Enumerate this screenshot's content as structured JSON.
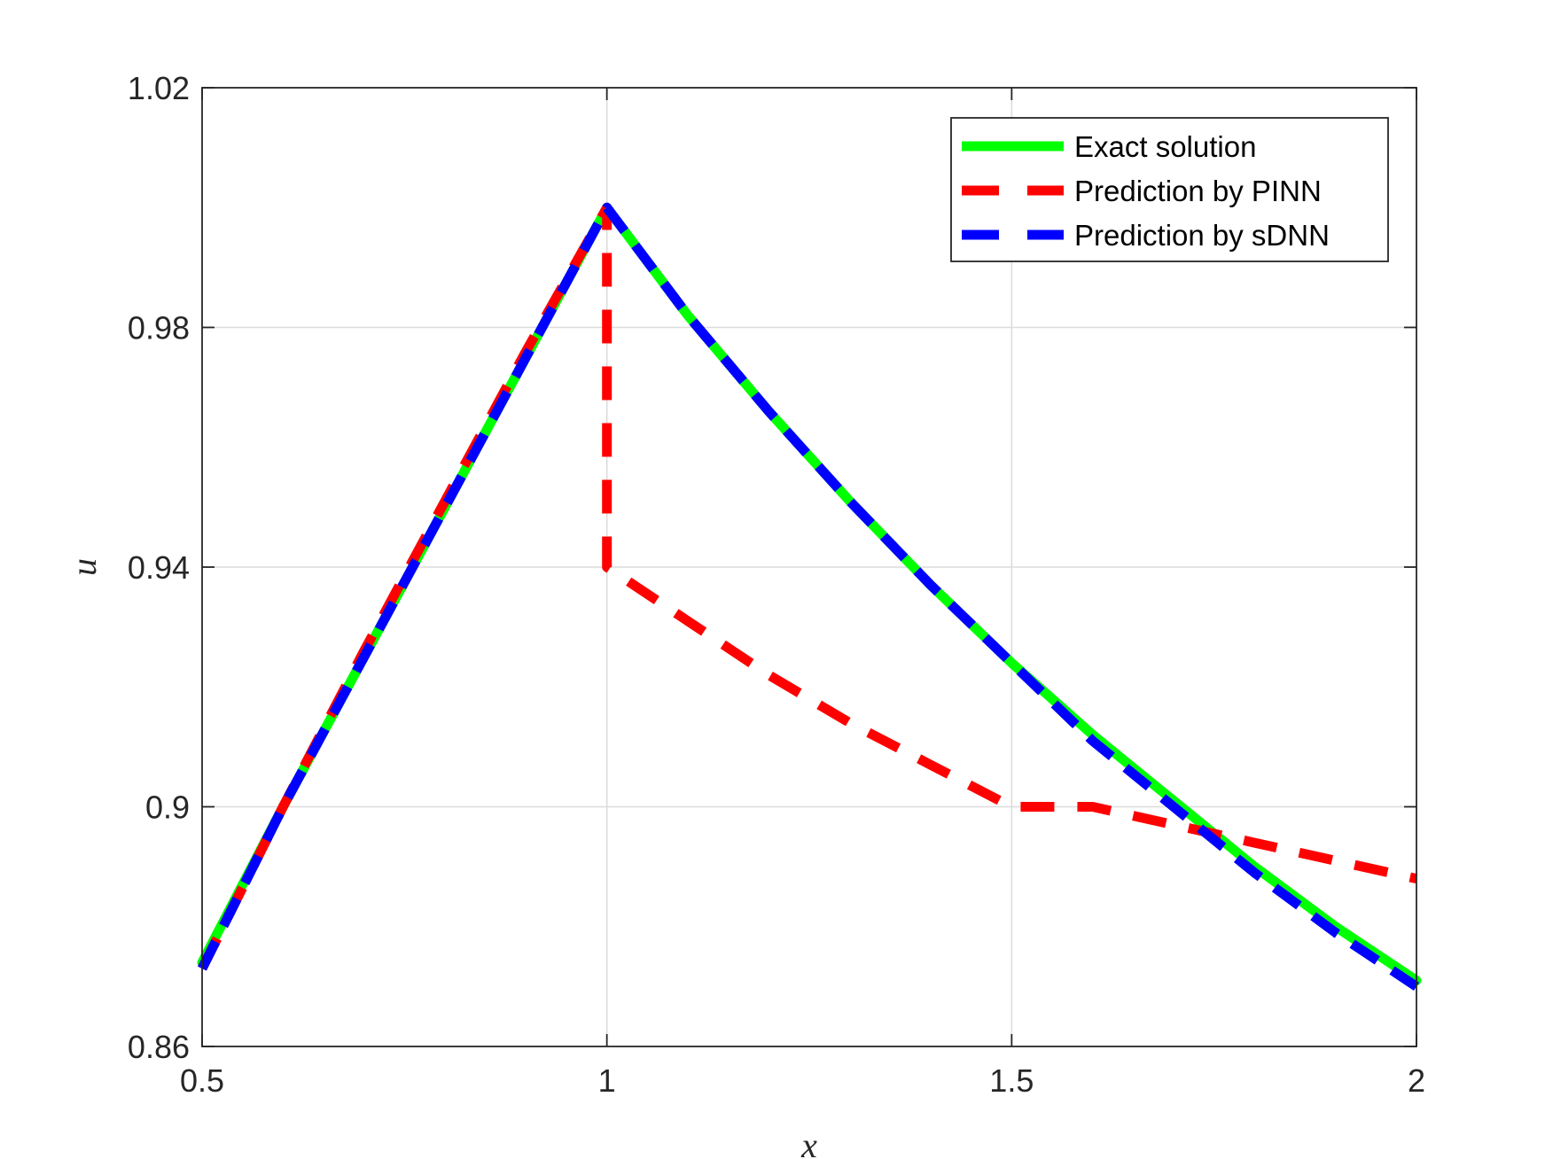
{
  "chart_data": {
    "type": "line",
    "xlabel": "x",
    "ylabel": "u",
    "xlim": [
      0.5,
      2
    ],
    "ylim": [
      0.86,
      1.02
    ],
    "xticks": [
      0.5,
      1,
      1.5,
      2
    ],
    "xtick_labels": [
      "0.5",
      "1",
      "1.5",
      "2"
    ],
    "yticks": [
      0.86,
      0.9,
      0.94,
      0.98,
      1.02
    ],
    "ytick_labels": [
      "0.86",
      "0.9",
      "0.94",
      "0.98",
      "1.02"
    ],
    "grid": true,
    "legend_position": "top-right",
    "series": [
      {
        "name": "Exact solution",
        "color": "#00ff00",
        "style": "solid",
        "x": [
          0.5,
          0.6,
          0.7,
          0.8,
          0.9,
          1.0,
          1.1,
          1.2,
          1.3,
          1.4,
          1.5,
          1.6,
          1.7,
          1.8,
          1.9,
          2.0
        ],
        "y": [
          0.874,
          0.9,
          0.925,
          0.95,
          0.975,
          1.0,
          0.982,
          0.966,
          0.951,
          0.937,
          0.924,
          0.912,
          0.901,
          0.89,
          0.88,
          0.871
        ]
      },
      {
        "name": "Prediction by PINN",
        "color": "#ff0000",
        "style": "dashed",
        "x": [
          0.5,
          0.6,
          0.7,
          0.8,
          0.9,
          1.0,
          1.0,
          1.1,
          1.2,
          1.3,
          1.4,
          1.5,
          1.6,
          1.7,
          1.8,
          1.9,
          2.0
        ],
        "y": [
          0.873,
          0.9,
          0.926,
          0.951,
          0.976,
          1.0,
          0.94,
          0.931,
          0.922,
          0.914,
          0.907,
          0.9,
          0.9,
          0.897,
          0.894,
          0.891,
          0.888
        ]
      },
      {
        "name": "Prediction by sDNN",
        "color": "#0000ff",
        "style": "dashed",
        "x": [
          0.5,
          0.6,
          0.7,
          0.8,
          0.9,
          1.0,
          1.1,
          1.2,
          1.3,
          1.4,
          1.5,
          1.6,
          1.7,
          1.8,
          1.9,
          2.0
        ],
        "y": [
          0.873,
          0.9,
          0.925,
          0.95,
          0.975,
          1.0,
          0.982,
          0.966,
          0.951,
          0.937,
          0.924,
          0.911,
          0.9,
          0.889,
          0.879,
          0.87
        ]
      }
    ]
  }
}
